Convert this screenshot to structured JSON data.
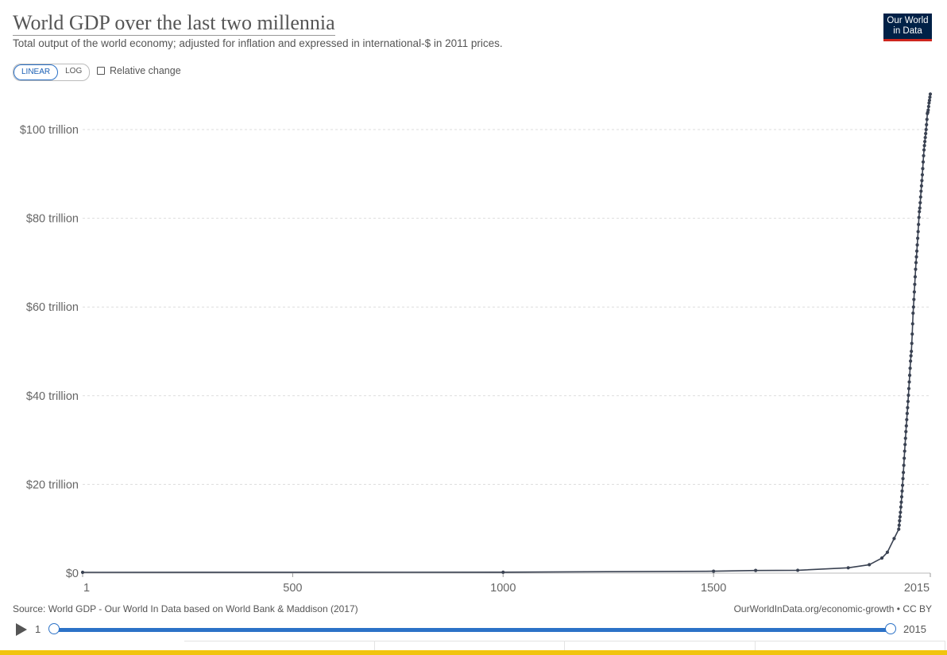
{
  "header": {
    "title": "World GDP over the last two millennia",
    "subtitle": "Total output of the world economy; adjusted for inflation and expressed in international-$ in 2011 prices.",
    "logo_line1": "Our World",
    "logo_line2": "in Data"
  },
  "controls": {
    "linear_label": "LINEAR",
    "log_label": "LOG",
    "relative_label": "Relative change"
  },
  "footer": {
    "source": "Source: World GDP - Our World In Data based on World Bank & Maddison (2017)",
    "credit": "OurWorldInData.org/economic-growth • CC BY"
  },
  "timeline": {
    "start_label": "1",
    "end_label": "2015",
    "start_value": 1,
    "end_value": 2015
  },
  "colors": {
    "line": "#3a4252",
    "accent": "#2c72c7",
    "logo_bg": "#002147",
    "logo_stripe": "#ce261e",
    "bottom_strip": "#f1c40f"
  },
  "chart_data": {
    "type": "line",
    "title": "World GDP over the last two millennia",
    "ylim": [
      0,
      100
    ],
    "xlim": [
      1,
      2015
    ],
    "y_unit": "trillion",
    "yticks": [
      {
        "value": 0,
        "label": "$0"
      },
      {
        "value": 20,
        "label": "$20 trillion"
      },
      {
        "value": 40,
        "label": "$40 trillion"
      },
      {
        "value": 60,
        "label": "$60 trillion"
      },
      {
        "value": 80,
        "label": "$80 trillion"
      },
      {
        "value": 100,
        "label": "$100 trillion"
      }
    ],
    "xticks": [
      {
        "value": 1,
        "label": "1"
      },
      {
        "value": 500,
        "label": "500"
      },
      {
        "value": 1000,
        "label": "1000"
      },
      {
        "value": 1500,
        "label": "1500"
      },
      {
        "value": 2015,
        "label": "2015"
      }
    ],
    "grid": true,
    "series": [
      {
        "points": [
          [
            1,
            0.18
          ],
          [
            1000,
            0.21
          ],
          [
            1500,
            0.43
          ],
          [
            1600,
            0.6
          ],
          [
            1700,
            0.64
          ],
          [
            1820,
            1.2
          ],
          [
            1870,
            1.9
          ],
          [
            1900,
            3.4
          ],
          [
            1913,
            4.7
          ],
          [
            1929,
            7.8
          ],
          [
            1940,
            9.9
          ],
          [
            1941,
            10.8
          ],
          [
            1942,
            11.8
          ],
          [
            1943,
            12.7
          ],
          [
            1944,
            13.7
          ],
          [
            1945,
            14.9
          ],
          [
            1946,
            16.0
          ],
          [
            1947,
            17.2
          ],
          [
            1948,
            18.5
          ],
          [
            1949,
            19.8
          ],
          [
            1950,
            21.3
          ],
          [
            1951,
            22.7
          ],
          [
            1952,
            24.3
          ],
          [
            1953,
            25.9
          ],
          [
            1954,
            27.5
          ],
          [
            1955,
            29.0
          ],
          [
            1956,
            30.4
          ],
          [
            1957,
            31.9
          ],
          [
            1958,
            33.2
          ],
          [
            1959,
            34.6
          ],
          [
            1960,
            36.0
          ],
          [
            1961,
            37.3
          ],
          [
            1962,
            38.7
          ],
          [
            1963,
            40.1
          ],
          [
            1964,
            41.6
          ],
          [
            1965,
            43.1
          ],
          [
            1966,
            44.6
          ],
          [
            1967,
            46.2
          ],
          [
            1968,
            47.8
          ],
          [
            1969,
            49.0
          ],
          [
            1970,
            50.0
          ],
          [
            1971,
            51.8
          ],
          [
            1972,
            53.9
          ],
          [
            1973,
            56.2
          ],
          [
            1974,
            58.6
          ],
          [
            1975,
            60.0
          ],
          [
            1976,
            61.7
          ],
          [
            1977,
            63.4
          ],
          [
            1978,
            65.1
          ],
          [
            1979,
            66.8
          ],
          [
            1980,
            68.5
          ],
          [
            1981,
            70.0
          ],
          [
            1982,
            71.3
          ],
          [
            1983,
            72.6
          ],
          [
            1984,
            74.0
          ],
          [
            1985,
            75.5
          ],
          [
            1986,
            77.0
          ],
          [
            1987,
            78.6
          ],
          [
            1988,
            80.2
          ],
          [
            1989,
            81.5
          ],
          [
            1990,
            82.3
          ],
          [
            1991,
            83.5
          ],
          [
            1992,
            84.8
          ],
          [
            1993,
            86.1
          ],
          [
            1994,
            87.3
          ],
          [
            1995,
            88.5
          ],
          [
            1996,
            89.8
          ],
          [
            1997,
            91.2
          ],
          [
            1998,
            92.7
          ],
          [
            1999,
            94.1
          ],
          [
            2000,
            95.4
          ],
          [
            2001,
            96.4
          ],
          [
            2002,
            97.3
          ],
          [
            2003,
            98.2
          ],
          [
            2004,
            99.1
          ],
          [
            2005,
            100.0
          ],
          [
            2006,
            101.1
          ],
          [
            2007,
            102.3
          ],
          [
            2008,
            103.6
          ],
          [
            2009,
            103.9
          ],
          [
            2010,
            104.4
          ],
          [
            2011,
            105.2
          ],
          [
            2012,
            106.0
          ],
          [
            2013,
            106.6
          ],
          [
            2014,
            107.3
          ],
          [
            2015,
            108.0
          ]
        ]
      }
    ]
  }
}
